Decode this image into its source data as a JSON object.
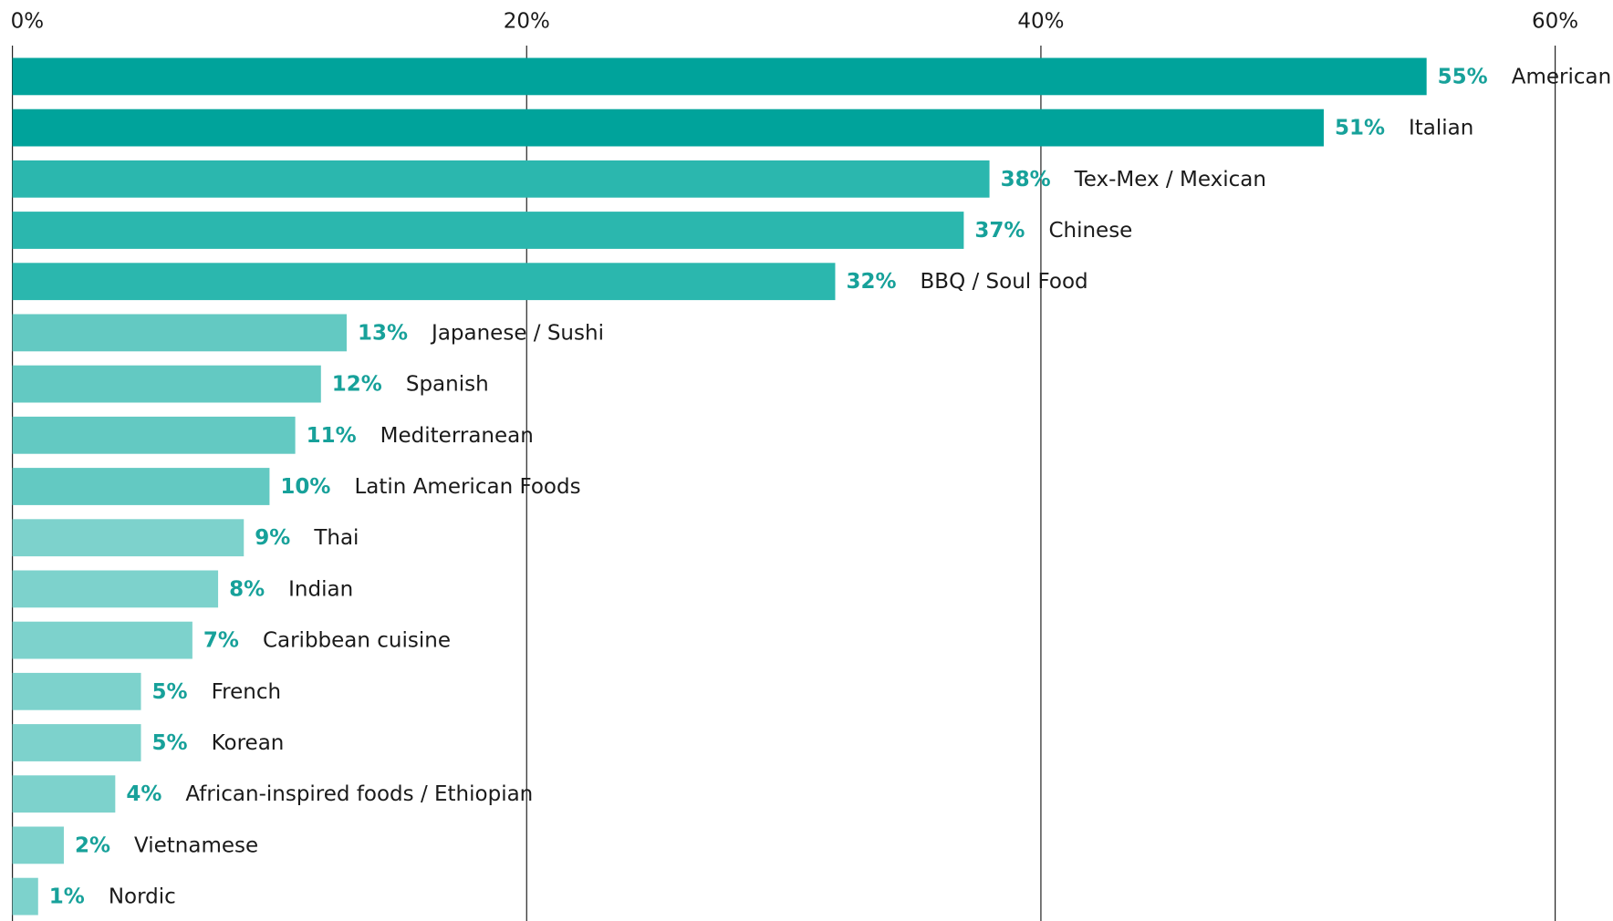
{
  "chart_data": {
    "type": "bar",
    "orientation": "horizontal",
    "categories": [
      "American",
      "Italian",
      "Tex-Mex / Mexican",
      "Chinese",
      "BBQ / Soul Food",
      "Japanese / Sushi",
      "Spanish",
      "Mediterranean",
      "Latin American Foods",
      "Thai",
      "Indian",
      "Caribbean cuisine",
      "French",
      "Korean",
      "African-inspired foods / Ethiopian",
      "Vietnamese",
      "Nordic"
    ],
    "values": [
      55,
      51,
      38,
      37,
      32,
      13,
      12,
      11,
      10,
      9,
      8,
      7,
      5,
      5,
      4,
      2,
      1
    ],
    "value_labels": [
      "55%",
      "51%",
      "38%",
      "37%",
      "32%",
      "13%",
      "12%",
      "11%",
      "10%",
      "9%",
      "8%",
      "7%",
      "5%",
      "5%",
      "4%",
      "2%",
      "1%"
    ],
    "colors": [
      "#00a39b",
      "#00a39b",
      "#2bb7ae",
      "#2bb7ae",
      "#2bb7ae",
      "#63c9c2",
      "#63c9c2",
      "#63c9c2",
      "#63c9c2",
      "#7dd2cc",
      "#7dd2cc",
      "#7dd2cc",
      "#7dd2cc",
      "#7dd2cc",
      "#7dd2cc",
      "#7dd2cc",
      "#7dd2cc"
    ],
    "xlim": [
      0,
      60
    ],
    "xticks": [
      {
        "value": 0,
        "label": "0%"
      },
      {
        "value": 20,
        "label": "20%"
      },
      {
        "value": 40,
        "label": "40%"
      },
      {
        "value": 60,
        "label": "60%"
      }
    ],
    "grid": true
  }
}
